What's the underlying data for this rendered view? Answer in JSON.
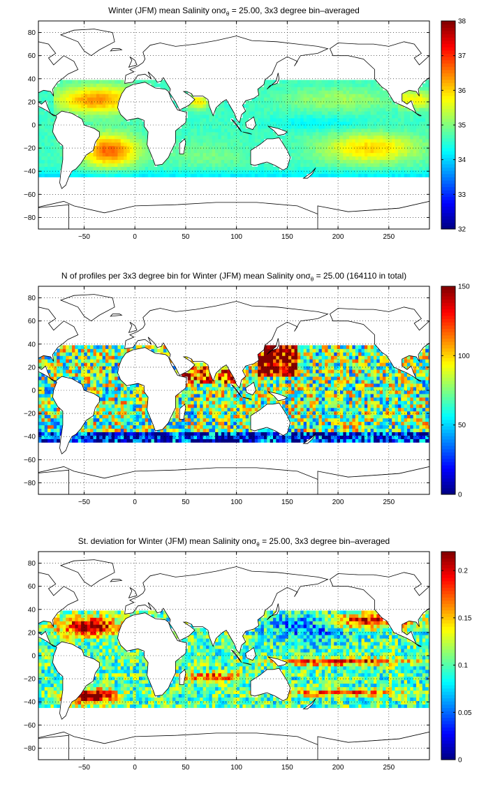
{
  "chart_data": [
    {
      "type": "heatmap",
      "title_prefix": "Winter (JFM) mean Salinity on",
      "sigma_symbol": "σ",
      "sigma_sub": "θ",
      "title_suffix": " = 25.00, 3x3 degree bin–averaged",
      "field": "salinity",
      "xlim": [
        -95,
        290
      ],
      "ylim": [
        -90,
        90
      ],
      "xticks": [
        -50,
        0,
        50,
        100,
        150,
        200,
        250
      ],
      "yticks": [
        -80,
        -60,
        -40,
        -20,
        0,
        20,
        40,
        60,
        80
      ],
      "grid": true,
      "colormap": "jet",
      "clim": [
        32,
        38
      ],
      "colorbar_ticks": [
        32,
        33,
        34,
        35,
        36,
        37,
        38
      ],
      "colorbar_labels": [
        "32",
        "33",
        "34",
        "35",
        "36",
        "37",
        "38"
      ]
    },
    {
      "type": "heatmap",
      "title_prefix": "N of profiles per 3x3 degree bin for Winter (JFM) mean Salinity on",
      "sigma_symbol": "σ",
      "sigma_sub": "θ",
      "title_suffix": " = 25.00 (164110 in total)",
      "field": "count",
      "xlim": [
        -95,
        290
      ],
      "ylim": [
        -90,
        90
      ],
      "xticks": [
        -50,
        0,
        50,
        100,
        150,
        200,
        250
      ],
      "yticks": [
        -80,
        -60,
        -40,
        -20,
        0,
        20,
        40,
        60,
        80
      ],
      "grid": true,
      "colormap": "jet",
      "clim": [
        0,
        150
      ],
      "colorbar_ticks": [
        0,
        50,
        100,
        150
      ],
      "colorbar_labels": [
        "0",
        "50",
        "100",
        "150"
      ]
    },
    {
      "type": "heatmap",
      "title_prefix": "St. deviation for Winter (JFM) mean Salinity on",
      "sigma_symbol": "σ",
      "sigma_sub": "θ",
      "title_suffix": " = 25.00, 3x3 degree bin–averaged",
      "field": "std",
      "xlim": [
        -95,
        290
      ],
      "ylim": [
        -90,
        90
      ],
      "xticks": [
        -50,
        0,
        50,
        100,
        150,
        200,
        250
      ],
      "yticks": [
        -80,
        -60,
        -40,
        -20,
        0,
        20,
        40,
        60,
        80
      ],
      "grid": true,
      "colormap": "jet",
      "clim": [
        0,
        0.22
      ],
      "colorbar_ticks": [
        0,
        0.05,
        0.1,
        0.15,
        0.2
      ],
      "colorbar_labels": [
        "0",
        "0.05",
        "0.1",
        "0.15",
        "0.2"
      ]
    }
  ]
}
